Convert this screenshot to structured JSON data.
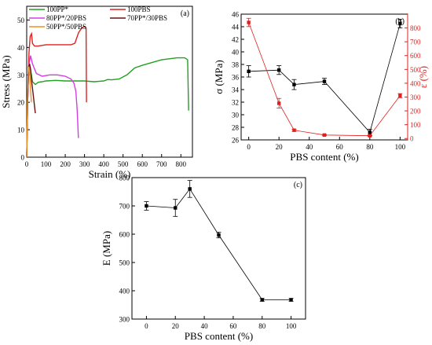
{
  "chart_data": [
    {
      "type": "line",
      "panel": "(a)",
      "xlabel": "Strain (%)",
      "ylabel": "Stress (MPa)",
      "xlim": [
        0,
        860
      ],
      "ylim": [
        0,
        55
      ],
      "xticks": [
        0,
        100,
        200,
        300,
        400,
        500,
        600,
        700,
        800
      ],
      "yticks": [
        0,
        10,
        20,
        30,
        40,
        50
      ],
      "legend_position": "top-left",
      "series": [
        {
          "name": "100PP*",
          "color": "#22a022",
          "x": [
            0,
            5,
            10,
            18,
            30,
            45,
            60,
            80,
            100,
            150,
            200,
            250,
            300,
            350,
            400,
            420,
            440,
            480,
            520,
            560,
            600,
            700,
            780,
            820,
            835,
            840
          ],
          "y": [
            0,
            22,
            31,
            33,
            27.5,
            26.5,
            27.3,
            27.5,
            27.8,
            28,
            27.8,
            27.8,
            27.8,
            27.5,
            27.8,
            28.3,
            28.2,
            28.5,
            30,
            32.5,
            33.5,
            35.5,
            36.2,
            36.2,
            35.5,
            17
          ]
        },
        {
          "name": "100PBS",
          "color": "#e02020",
          "x": [
            0,
            5,
            12,
            18,
            25,
            30,
            40,
            60,
            100,
            150,
            200,
            230,
            250,
            270,
            285,
            295,
            305,
            308,
            310
          ],
          "y": [
            0,
            20,
            38,
            44,
            45,
            41.5,
            40.5,
            40.5,
            41,
            41,
            41,
            41,
            41.5,
            45.5,
            47,
            47.5,
            47.5,
            47,
            20
          ]
        },
        {
          "name": "80PP*/20PBS",
          "color": "#d040e0",
          "x": [
            0,
            5,
            10,
            20,
            30,
            50,
            80,
            120,
            160,
            200,
            230,
            245,
            255,
            262,
            268
          ],
          "y": [
            0,
            20,
            33,
            37,
            34,
            30.5,
            29.5,
            30,
            30,
            29.5,
            28.5,
            27,
            24,
            17,
            7
          ]
        },
        {
          "name": "70PP*/30PBS",
          "color": "#6b1010",
          "x": [
            0,
            5,
            10,
            15,
            20,
            25,
            30,
            35,
            40,
            45
          ],
          "y": [
            0,
            20,
            33,
            34,
            32,
            28,
            25,
            22,
            19,
            16
          ]
        },
        {
          "name": "50PP*/50PBS",
          "color": "#f09020",
          "x": [
            0,
            4,
            8,
            12,
            16,
            20,
            24
          ],
          "y": [
            0,
            20,
            32,
            33,
            30,
            25,
            20
          ]
        }
      ]
    },
    {
      "type": "line",
      "panel": "(b)",
      "xlabel": "PBS content (%)",
      "ylabel": "σ (MPa)",
      "y2label": "ε (%)",
      "xlim": [
        -5,
        105
      ],
      "ylim": [
        26,
        46
      ],
      "y2lim": [
        -10,
        900
      ],
      "xticks": [
        0,
        20,
        40,
        60,
        80,
        100
      ],
      "yticks": [
        26,
        28,
        30,
        32,
        34,
        36,
        38,
        40,
        42,
        44,
        46
      ],
      "y2ticks": [
        0,
        100,
        200,
        300,
        400,
        500,
        600,
        700,
        800
      ],
      "series": [
        {
          "name": "σ",
          "axis": "left",
          "color": "#000000",
          "x": [
            0,
            20,
            30,
            50,
            80,
            100
          ],
          "y": [
            36.9,
            37.1,
            34.8,
            35.3,
            27.2,
            44.5
          ],
          "err": [
            0.9,
            0.7,
            0.8,
            0.5,
            0.5,
            0.7
          ]
        },
        {
          "name": "ε",
          "axis": "right",
          "color": "#e02020",
          "x": [
            0,
            20,
            30,
            50,
            80,
            100
          ],
          "y": [
            840,
            255,
            60,
            25,
            20,
            310
          ],
          "err": [
            30,
            35,
            8,
            5,
            5,
            15
          ]
        }
      ]
    },
    {
      "type": "line",
      "panel": "(c)",
      "xlabel": "PBS content (%)",
      "ylabel": "E (MPa)",
      "xlim": [
        -10,
        110
      ],
      "ylim": [
        300,
        800
      ],
      "xticks": [
        0,
        20,
        40,
        60,
        80,
        100
      ],
      "yticks": [
        300,
        400,
        500,
        600,
        700,
        800
      ],
      "series": [
        {
          "name": "E",
          "color": "#000000",
          "x": [
            0,
            20,
            30,
            50,
            80,
            100
          ],
          "y": [
            700,
            693,
            760,
            597,
            368,
            368
          ],
          "err": [
            15,
            30,
            30,
            10,
            5,
            5
          ]
        }
      ]
    }
  ]
}
